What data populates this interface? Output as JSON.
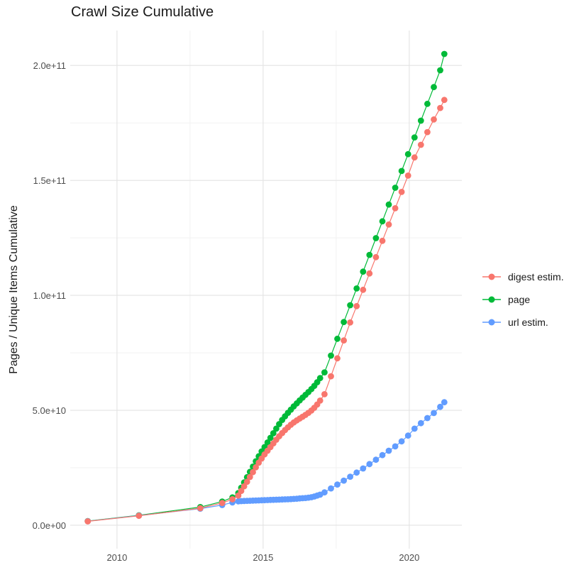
{
  "chart_data": {
    "type": "scatter",
    "title": "Crawl Size Cumulative",
    "ylabel": "Pages / Unique Items Cumulative",
    "xlabel": "",
    "legend_position": "right",
    "grid": true,
    "value_unit": "1e9 (values below are billions of items)",
    "x_years": [
      2009.0,
      2010.75,
      2012.85,
      2013.6,
      2013.95,
      2014.15,
      2014.25,
      2014.35,
      2014.45,
      2014.55,
      2014.65,
      2014.75,
      2014.85,
      2014.95,
      2015.05,
      2015.15,
      2015.25,
      2015.35,
      2015.45,
      2015.55,
      2015.65,
      2015.75,
      2015.85,
      2015.95,
      2016.05,
      2016.15,
      2016.25,
      2016.35,
      2016.45,
      2016.55,
      2016.65,
      2016.75,
      2016.85,
      2016.95,
      2017.1,
      2017.32,
      2017.54,
      2017.76,
      2017.98,
      2018.2,
      2018.42,
      2018.64,
      2018.86,
      2019.08,
      2019.3,
      2019.52,
      2019.74,
      2019.96,
      2020.18,
      2020.4,
      2020.62,
      2020.84,
      2021.06,
      2021.2
    ],
    "series": [
      {
        "name": "digest estim.",
        "color": "#F8766D",
        "values": [
          1.7,
          4.1,
          7.4,
          9.7,
          11.3,
          12.9,
          14.9,
          16.9,
          18.9,
          21.0,
          23.1,
          25.2,
          27.2,
          29.0,
          30.8,
          32.4,
          34.0,
          35.6,
          37.2,
          38.7,
          40.1,
          41.4,
          42.6,
          43.7,
          44.7,
          45.6,
          46.4,
          47.2,
          48.0,
          48.9,
          49.9,
          51.1,
          52.5,
          54.2,
          57.0,
          64.8,
          72.6,
          80.4,
          88.2,
          95.3,
          102.4,
          109.5,
          116.6,
          123.7,
          130.8,
          137.9,
          145.0,
          152.1,
          160.0,
          165.5,
          171.0,
          176.5,
          181.5,
          185.0
        ]
      },
      {
        "name": "page",
        "color": "#00BA38",
        "values": [
          1.8,
          4.3,
          7.9,
          10.3,
          12.1,
          14.0,
          16.3,
          18.6,
          20.9,
          23.2,
          25.5,
          27.8,
          30.0,
          32.1,
          34.0,
          36.0,
          38.0,
          40.0,
          42.0,
          44.0,
          45.8,
          47.4,
          48.9,
          50.3,
          51.7,
          53.0,
          54.3,
          55.5,
          56.7,
          57.9,
          59.2,
          60.6,
          62.2,
          64.0,
          66.5,
          73.8,
          81.1,
          88.4,
          95.7,
          103.0,
          110.3,
          117.6,
          124.9,
          132.2,
          139.5,
          146.8,
          154.1,
          161.4,
          168.7,
          176.0,
          183.3,
          190.6,
          197.9,
          205.0
        ]
      },
      {
        "name": "url estim.",
        "color": "#619CFF",
        "values": [
          1.75,
          4.2,
          7.2,
          8.8,
          9.9,
          10.4,
          10.5,
          10.55,
          10.6,
          10.65,
          10.7,
          10.75,
          10.8,
          10.85,
          10.9,
          10.95,
          11.0,
          11.05,
          11.1,
          11.15,
          11.2,
          11.25,
          11.3,
          11.35,
          11.45,
          11.55,
          11.65,
          11.75,
          11.85,
          12.0,
          12.2,
          12.5,
          12.9,
          13.3,
          14.3,
          16.0,
          17.7,
          19.4,
          21.1,
          22.9,
          24.7,
          26.6,
          28.5,
          30.5,
          32.4,
          34.3,
          36.5,
          39.0,
          42.0,
          44.4,
          46.6,
          48.8,
          51.5,
          53.5
        ]
      }
    ],
    "axes": {
      "xlim": [
        2008.4,
        2021.8
      ],
      "ylim_e9": [
        -10.2,
        215.2
      ],
      "x_major_ticks": [
        {
          "value": 2010,
          "label": "2010"
        },
        {
          "value": 2015,
          "label": "2015"
        },
        {
          "value": 2020,
          "label": "2020"
        }
      ],
      "x_minor_ticks": [
        2012.5,
        2017.5
      ],
      "y_major_ticks": [
        {
          "value": 0,
          "label": "0.0e+00"
        },
        {
          "value": 50,
          "label": "5.0e+10"
        },
        {
          "value": 100,
          "label": "1.0e+11"
        },
        {
          "value": 150,
          "label": "1.5e+11"
        },
        {
          "value": 200,
          "label": "2.0e+11"
        }
      ],
      "y_minor_ticks": [
        25,
        75,
        125,
        175
      ]
    }
  },
  "colors": {
    "background": "#ffffff",
    "grid_major": "#e3e3e3",
    "grid_minor": "#f2f2f2",
    "tick_label": "#4d4d4d",
    "text": "#1a1a1a"
  }
}
